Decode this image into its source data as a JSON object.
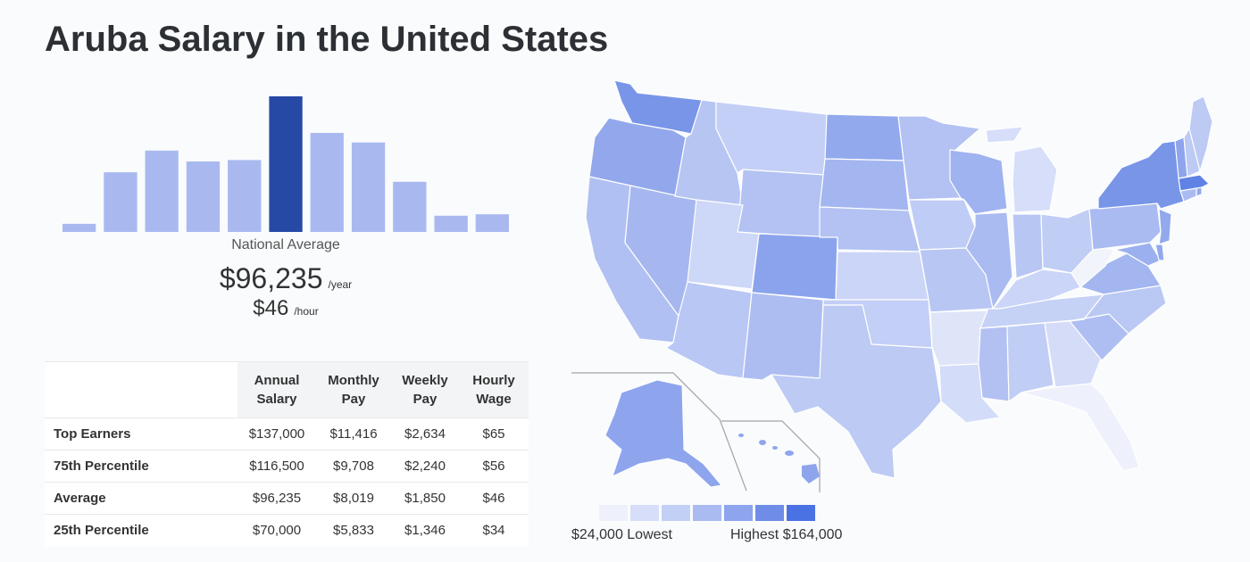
{
  "title": "Aruba Salary in the United States",
  "colors": {
    "bar": "#a9b9f0",
    "bar_highlight": "#2649a6",
    "map_scale": [
      "#eef1fb",
      "#d6defa",
      "#c3d0f6",
      "#a9bbf1",
      "#8ea5ed",
      "#6f8de8",
      "#4a72e3"
    ]
  },
  "chart_data": [
    {
      "type": "bar",
      "values": [
        6,
        44,
        60,
        52,
        53,
        100,
        73,
        66,
        37,
        12,
        13
      ],
      "highlight_index": 5,
      "ylim": [
        0,
        100
      ],
      "grid": false,
      "legend": "none"
    },
    {
      "type": "heatmap",
      "region": "United States",
      "scale_min": 24000,
      "scale_max": 164000,
      "scale_steps": 7,
      "legend_placement": "bottom-left"
    }
  ],
  "summary": {
    "label": "National Average",
    "yearly": "$96,235",
    "yearly_unit": "/year",
    "hourly": "$46",
    "hourly_unit": "/hour"
  },
  "table": {
    "columns": [
      [
        "Annual",
        "Salary"
      ],
      [
        "Monthly",
        "Pay"
      ],
      [
        "Weekly",
        "Pay"
      ],
      [
        "Hourly",
        "Wage"
      ]
    ],
    "rows": [
      {
        "label": "Top Earners",
        "values": [
          "$137,000",
          "$11,416",
          "$2,634",
          "$65"
        ]
      },
      {
        "label": "75th Percentile",
        "values": [
          "$116,500",
          "$9,708",
          "$2,240",
          "$56"
        ]
      },
      {
        "label": "Average",
        "values": [
          "$96,235",
          "$8,019",
          "$1,850",
          "$46"
        ]
      },
      {
        "label": "25th Percentile",
        "values": [
          "$70,000",
          "$5,833",
          "$1,346",
          "$34"
        ]
      }
    ]
  },
  "map_legend": {
    "low": "$24,000 Lowest",
    "high": "Highest $164,000"
  }
}
